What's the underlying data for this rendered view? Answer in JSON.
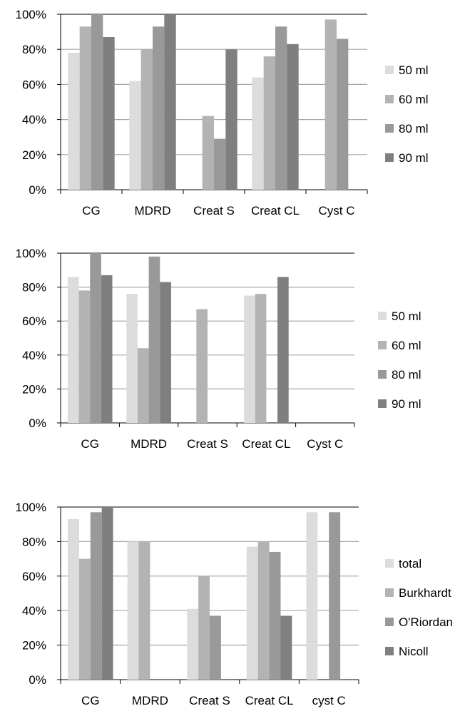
{
  "chart_data": [
    {
      "type": "bar",
      "categories": [
        "CG",
        "MDRD",
        "Creat S",
        "Creat CL",
        "Cyst C"
      ],
      "series": [
        {
          "name": "50 ml",
          "color": "#dcdcdc",
          "values": [
            78,
            62,
            null,
            64,
            null
          ]
        },
        {
          "name": "60 ml",
          "color": "#b3b3b3",
          "values": [
            93,
            80,
            42,
            76,
            97
          ]
        },
        {
          "name": "80 ml",
          "color": "#999999",
          "values": [
            100,
            93,
            29,
            93,
            86
          ]
        },
        {
          "name": "90 ml",
          "color": "#7f7f7f",
          "values": [
            87,
            100,
            80,
            83,
            null
          ]
        }
      ],
      "ylim": [
        0,
        100
      ],
      "yticks": [
        "0%",
        "20%",
        "40%",
        "60%",
        "80%",
        "100%"
      ],
      "grid": true,
      "legend": "right"
    },
    {
      "type": "bar",
      "categories": [
        "CG",
        "MDRD",
        "Creat S",
        "Creat CL",
        "Cyst C"
      ],
      "series": [
        {
          "name": "50 ml",
          "color": "#dcdcdc",
          "values": [
            86,
            76,
            null,
            75,
            null
          ]
        },
        {
          "name": "60 ml",
          "color": "#b3b3b3",
          "values": [
            78,
            44,
            67,
            76,
            null
          ]
        },
        {
          "name": "80 ml",
          "color": "#999999",
          "values": [
            100,
            98,
            null,
            null,
            null
          ]
        },
        {
          "name": "90 ml",
          "color": "#7f7f7f",
          "values": [
            87,
            83,
            null,
            86,
            null
          ]
        }
      ],
      "ylim": [
        0,
        100
      ],
      "yticks": [
        "0%",
        "20%",
        "40%",
        "60%",
        "80%",
        "100%"
      ],
      "grid": true,
      "legend": "right"
    },
    {
      "type": "bar",
      "categories": [
        "CG",
        "MDRD",
        "Creat S",
        "Creat CL",
        "cyst C"
      ],
      "series": [
        {
          "name": "total",
          "color": "#dcdcdc",
          "values": [
            93,
            80,
            41,
            77,
            97
          ]
        },
        {
          "name": "Burkhardt",
          "color": "#b3b3b3",
          "values": [
            70,
            80,
            60,
            80,
            null
          ]
        },
        {
          "name": "O'Riordan",
          "color": "#999999",
          "values": [
            97,
            null,
            37,
            74,
            97
          ]
        },
        {
          "name": "Nicoll",
          "color": "#7f7f7f",
          "values": [
            100,
            null,
            null,
            37,
            null
          ]
        }
      ],
      "ylim": [
        0,
        100
      ],
      "yticks": [
        "0%",
        "20%",
        "40%",
        "60%",
        "80%",
        "100%"
      ],
      "grid": true,
      "legend": "right"
    }
  ]
}
